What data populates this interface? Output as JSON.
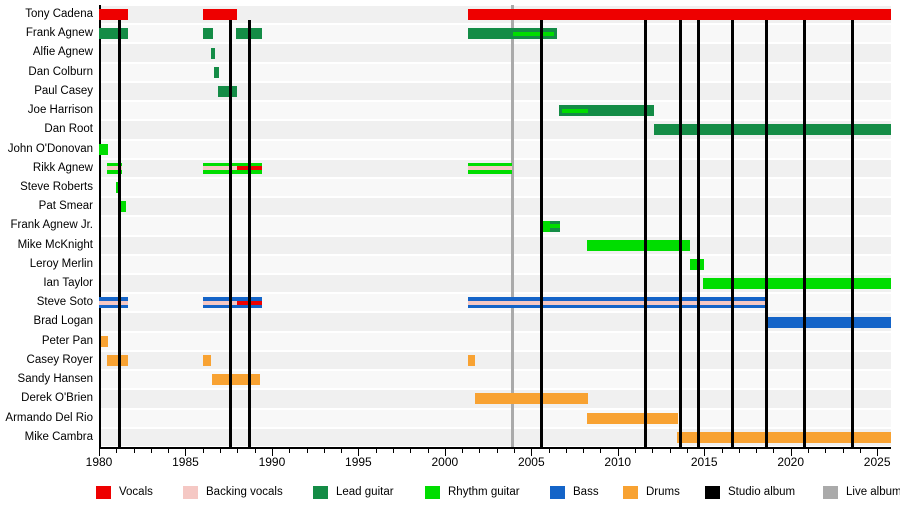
{
  "chart_data": {
    "type": "gantt",
    "description": "Band member timeline chart: colored horizontal bars per member by role, with vertical lines marking studio and live album releases",
    "x_axis": {
      "start": 1980,
      "end": 2025.8,
      "major_tick_interval": 5,
      "minor_tick_interval": 1,
      "labels": [
        "1980",
        "1985",
        "1990",
        "1995",
        "2000",
        "2005",
        "2010",
        "2015",
        "2020",
        "2025"
      ],
      "label_years": [
        1980,
        1985,
        1990,
        1995,
        2000,
        2005,
        2010,
        2015,
        2020,
        2025
      ]
    },
    "legend": [
      {
        "key": "vocals",
        "label": "Vocals",
        "color": "#ee0000"
      },
      {
        "key": "backing",
        "label": "Backing vocals",
        "color": "#f5c8c4"
      },
      {
        "key": "lead",
        "label": "Lead guitar",
        "color": "#148c46"
      },
      {
        "key": "rhythm",
        "label": "Rhythm guitar",
        "color": "#00dd00"
      },
      {
        "key": "bass",
        "label": "Bass",
        "color": "#1464c8"
      },
      {
        "key": "drums",
        "label": "Drums",
        "color": "#f8a232"
      },
      {
        "key": "studio",
        "label": "Studio album",
        "color": "#000000"
      },
      {
        "key": "live",
        "label": "Live album",
        "color": "#aaaaaa"
      }
    ],
    "members": [
      {
        "name": "Tony Cadena",
        "segments": [
          {
            "start": 1980.0,
            "end": 1981.7,
            "role": "vocals"
          },
          {
            "start": 1986.0,
            "end": 1988.0,
            "role": "vocals"
          },
          {
            "start": 2001.35,
            "end": 2025.8,
            "role": "vocals"
          }
        ]
      },
      {
        "name": "Frank Agnew",
        "segments": [
          {
            "start": 1980.0,
            "end": 1981.7,
            "role": "lead"
          },
          {
            "start": 1986.0,
            "end": 1986.6,
            "role": "lead"
          },
          {
            "start": 1987.95,
            "end": 1989.4,
            "role": "lead"
          },
          {
            "start": 2001.35,
            "end": 2006.5,
            "role": "lead",
            "inner": [
              {
                "start": 2003.95,
                "end": 2006.3,
                "role": "rhythm"
              }
            ]
          }
        ]
      },
      {
        "name": "Alfie Agnew",
        "segments": [
          {
            "start": 1986.45,
            "end": 1986.7,
            "role": "lead"
          }
        ]
      },
      {
        "name": "Dan Colburn",
        "segments": [
          {
            "start": 1986.65,
            "end": 1986.95,
            "role": "lead"
          }
        ]
      },
      {
        "name": "Paul Casey",
        "segments": [
          {
            "start": 1986.9,
            "end": 1988.0,
            "role": "lead"
          }
        ]
      },
      {
        "name": "Joe Harrison",
        "segments": [
          {
            "start": 2006.6,
            "end": 2012.1,
            "role": "lead",
            "inner": [
              {
                "start": 2006.8,
                "end": 2008.3,
                "role": "rhythm"
              }
            ]
          }
        ]
      },
      {
        "name": "Dan Root",
        "segments": [
          {
            "start": 2012.1,
            "end": 2025.8,
            "role": "lead"
          }
        ]
      },
      {
        "name": "John O'Donovan",
        "segments": [
          {
            "start": 1980.0,
            "end": 1980.5,
            "role": "rhythm"
          }
        ]
      },
      {
        "name": "Rikk Agnew",
        "segments": [
          {
            "start": 1980.45,
            "end": 1981.35,
            "role": "rhythm",
            "inner": [
              {
                "start": 1980.45,
                "end": 1981.35,
                "role": "backing"
              }
            ]
          },
          {
            "start": 1986.0,
            "end": 1989.4,
            "role": "rhythm",
            "inner": [
              {
                "start": 1986.0,
                "end": 1988.0,
                "role": "backing"
              },
              {
                "start": 1988.0,
                "end": 1989.4,
                "role": "vocals"
              }
            ]
          },
          {
            "start": 2001.35,
            "end": 2003.9,
            "role": "rhythm",
            "inner": [
              {
                "start": 2001.35,
                "end": 2003.9,
                "role": "backing"
              }
            ]
          }
        ]
      },
      {
        "name": "Steve Roberts",
        "segments": [
          {
            "start": 1981.0,
            "end": 1981.2,
            "role": "rhythm"
          }
        ]
      },
      {
        "name": "Pat Smear",
        "segments": [
          {
            "start": 1981.3,
            "end": 1981.55,
            "role": "rhythm"
          }
        ]
      },
      {
        "name": "Frank Agnew Jr.",
        "segments": [
          {
            "start": 2005.6,
            "end": 2006.1,
            "role": "rhythm"
          },
          {
            "start": 2006.1,
            "end": 2006.65,
            "role": "lead",
            "inner": [
              {
                "start": 2006.1,
                "end": 2006.65,
                "role": "rhythm"
              }
            ]
          }
        ]
      },
      {
        "name": "Mike McKnight",
        "segments": [
          {
            "start": 2008.2,
            "end": 2014.2,
            "role": "rhythm"
          }
        ]
      },
      {
        "name": "Leroy Merlin",
        "segments": [
          {
            "start": 2014.15,
            "end": 2015.0,
            "role": "rhythm"
          }
        ]
      },
      {
        "name": "Ian Taylor",
        "segments": [
          {
            "start": 2014.95,
            "end": 2025.8,
            "role": "rhythm"
          }
        ]
      },
      {
        "name": "Steve Soto",
        "segments": [
          {
            "start": 1980.0,
            "end": 1981.7,
            "role": "bass",
            "inner": [
              {
                "start": 1980.0,
                "end": 1981.7,
                "role": "backing"
              }
            ]
          },
          {
            "start": 1986.0,
            "end": 1989.4,
            "role": "bass",
            "inner": [
              {
                "start": 1986.0,
                "end": 1988.0,
                "role": "backing"
              },
              {
                "start": 1988.0,
                "end": 1989.4,
                "role": "vocals"
              }
            ]
          },
          {
            "start": 2001.35,
            "end": 2018.6,
            "role": "bass",
            "inner": [
              {
                "start": 2001.35,
                "end": 2018.6,
                "role": "backing"
              }
            ]
          }
        ]
      },
      {
        "name": "Brad Logan",
        "segments": [
          {
            "start": 2018.65,
            "end": 2025.8,
            "role": "bass"
          }
        ]
      },
      {
        "name": "Peter Pan",
        "segments": [
          {
            "start": 1980.1,
            "end": 1980.5,
            "role": "drums"
          }
        ]
      },
      {
        "name": "Casey Royer",
        "segments": [
          {
            "start": 1980.45,
            "end": 1981.7,
            "role": "drums"
          },
          {
            "start": 1986.0,
            "end": 1986.5,
            "role": "drums"
          },
          {
            "start": 2001.35,
            "end": 2001.75,
            "role": "drums"
          }
        ]
      },
      {
        "name": "Sandy Hansen",
        "segments": [
          {
            "start": 1986.55,
            "end": 1989.3,
            "role": "drums"
          }
        ]
      },
      {
        "name": "Derek O'Brien",
        "segments": [
          {
            "start": 2001.75,
            "end": 2008.3,
            "role": "drums"
          }
        ]
      },
      {
        "name": "Armando Del Rio",
        "segments": [
          {
            "start": 2008.2,
            "end": 2013.5,
            "role": "drums"
          }
        ]
      },
      {
        "name": "Mike Cambra",
        "segments": [
          {
            "start": 2013.4,
            "end": 2025.8,
            "role": "drums"
          }
        ]
      }
    ],
    "albums": {
      "studio_years": [
        1981.2,
        1987.6,
        1988.7,
        2005.6,
        2011.6,
        2013.65,
        2014.65,
        2016.65,
        2018.6,
        2020.8,
        2023.6
      ],
      "live_years": [
        2003.9
      ]
    }
  }
}
